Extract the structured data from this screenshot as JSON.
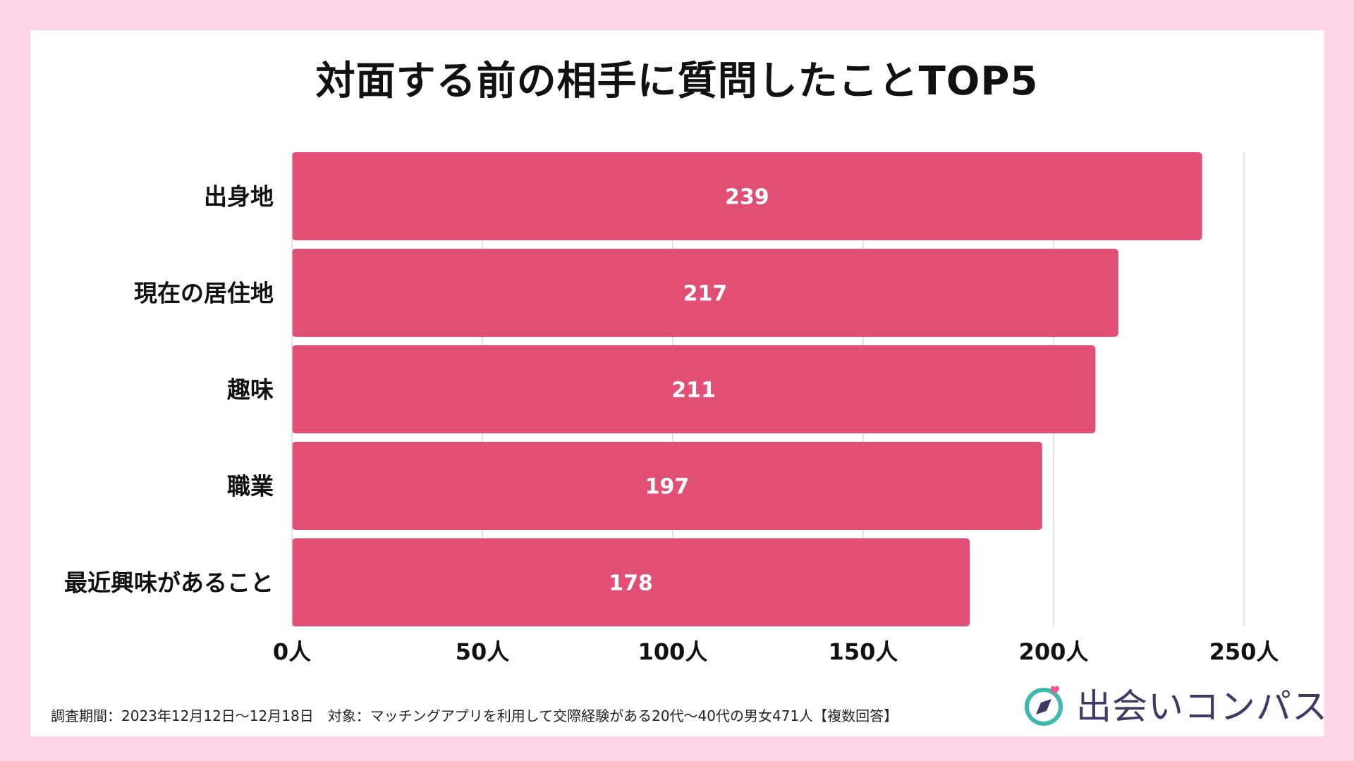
{
  "colors": {
    "background": "#fdd5e6",
    "bar": "#e24f74",
    "grid": "#d9d9d9",
    "logo_teal": "#3fb8b0",
    "logo_pink": "#f05a8c",
    "logo_navy": "#3d3a66"
  },
  "chart_data": {
    "type": "bar",
    "orientation": "horizontal",
    "title": "対面する前の相手に質問したことTOP5",
    "categories": [
      "出身地",
      "現在の居住地",
      "趣味",
      "職業",
      "最近興味があること"
    ],
    "values": [
      239,
      217,
      211,
      197,
      178
    ],
    "value_labels": [
      "239",
      "217",
      "211",
      "197",
      "178"
    ],
    "xlim": [
      0,
      250
    ],
    "xticks": [
      0,
      50,
      100,
      150,
      200,
      250
    ],
    "xtick_labels": [
      "0人",
      "50人",
      "100人",
      "150人",
      "200人",
      "250人"
    ],
    "grid": true,
    "xlabel": "",
    "ylabel": ""
  },
  "footnote": "調査期間：2023年12月12日〜12月18日　対象：マッチングアプリを利用して交際経験がある20代〜40代の男女471人【複数回答】",
  "brand": {
    "name": "出会いコンパス",
    "icon": "compass-heart-icon"
  }
}
